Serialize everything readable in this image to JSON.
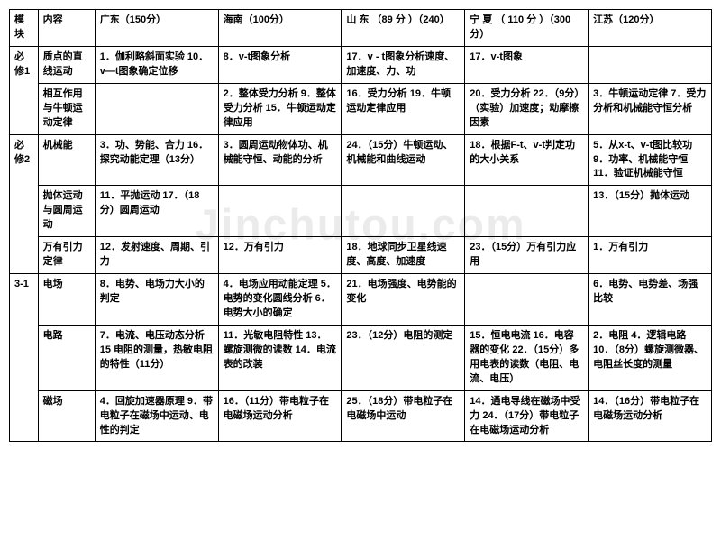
{
  "watermark": "Jinchutou.com",
  "headers": {
    "module": "模块",
    "content": "内容",
    "guangdong": "广东（150分）",
    "hainan": "海南（100分）",
    "shandong": "山 东 （89 分 ）（240）",
    "ningxia": "宁 夏 （ 110 分 ）（300分）",
    "jiangsu": "江苏（120分）"
  },
  "rows": [
    {
      "module": "必修1",
      "content": "质点的直线运动",
      "guangdong": "1．伽利略斜面实验\n10．v—t图象确定位移",
      "hainan": "8．v-t图象分析",
      "shandong": "17．v - t图象分析速度、加速度、力、功",
      "ningxia": "17．v-t图象",
      "jiangsu": ""
    },
    {
      "content": "相互作用与牛顿运动定律",
      "guangdong": "",
      "hainan": "2．整体受力分析\n9．整体受力分析\n15．牛顿运动定律应用",
      "shandong": "16．受力分析\n19．牛顿运动定律应用",
      "ningxia": "20．受力分析\n22．（9分）（实验）加速度；动摩擦因素",
      "jiangsu": "3．牛顿运动定律\n7．受力分析和机械能守恒分析"
    },
    {
      "module": "必修2",
      "content": "机械能",
      "guangdong": "3．功、势能、合力\n16．探究动能定理（13分）",
      "hainan": "3．圆周运动物体功、机械能守恒、动能的分析",
      "shandong": "24．（15分）牛顿运动、机械能和曲线运动",
      "ningxia": "18．根据F-t、v-t判定功的大小关系",
      "jiangsu": "5．从x-t、v-t图比较功\n9．功率、机械能守恒\n11．验证机械能守恒"
    },
    {
      "content": "抛体运动与圆周运动",
      "guangdong": "11．平抛运动\n17．（18分）圆周运动",
      "hainan": "",
      "shandong": "",
      "ningxia": "",
      "jiangsu": "13．（15分）抛体运动"
    },
    {
      "content": "万有引力定律",
      "guangdong": "12．发射速度、周期、引力",
      "hainan": "12．万有引力",
      "shandong": "18．地球同步卫星线速度、高度、加速度",
      "ningxia": "23．（15分）万有引力应用",
      "jiangsu": "1．万有引力"
    },
    {
      "module": "3-1",
      "content": "电场",
      "guangdong": "8．电势、电场力大小的判定",
      "hainan": "4．电场应用动能定理\n5．电势的变化圆线分析\n6．电势大小的确定",
      "shandong": "21．电场强度、电势能的变化",
      "ningxia": "",
      "jiangsu": "6．电势、电势差、场强比较"
    },
    {
      "content": "电路",
      "guangdong": "7．电流、电压动态分析\n15 电阻的测量，热敏电阻的特性（11分）",
      "hainan": "11．光敏电阻特性\n13．螺旋测微的读数\n14．电流表的改装",
      "shandong": "23．（12分）电阻的测定",
      "ningxia": "15．恒电电流\n16．电容器的变化\n22．（15分）多用电表的读数（电阻、电流、电压）",
      "jiangsu": "2．电阻\n4．逻辑电路\n10．（8分）螺旋测微器、电阻丝长度的测量"
    },
    {
      "content": "磁场",
      "guangdong": "4．回旋加速器原理\n9．带电粒子在磁场中运动、电性的判定",
      "hainan": "16．（11分）带电粒子在电磁场运动分析",
      "shandong": "25．（18分）带电粒子在电磁场中运动",
      "ningxia": "14．通电导线在磁场中受力\n24．（17分）带电粒子在电磁场运动分析",
      "jiangsu": "14．（16分）带电粒子在电磁场运动分析"
    }
  ]
}
